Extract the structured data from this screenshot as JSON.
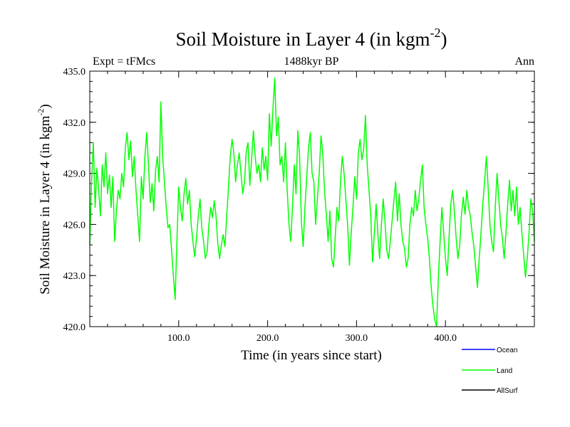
{
  "chart_data": {
    "type": "line",
    "title": "Soil Moisture in Layer 4 (in kgm",
    "title_sup": "-2",
    "title_end": ")",
    "subtitle": "1488kyr BP",
    "left_label": "Expt = tFMcs",
    "right_label": "Ann",
    "xlabel": "Time (in years since start)",
    "ylabel": "Soil Moisture in Layer 4 (in kgm",
    "ylabel_sup": "-2",
    "ylabel_end": ")",
    "xlim": [
      0,
      500
    ],
    "ylim": [
      420,
      435
    ],
    "xticks": [
      100,
      200,
      300,
      400
    ],
    "xtick_labels": [
      "100.0",
      "200.0",
      "300.0",
      "400.0"
    ],
    "yticks": [
      420,
      423,
      426,
      429,
      432,
      435
    ],
    "ytick_labels": [
      "420.0",
      "423.0",
      "426.0",
      "429.0",
      "432.0",
      "435.0"
    ],
    "legend": [
      {
        "name": "Ocean",
        "color": "#0000ff"
      },
      {
        "name": "Land",
        "color": "#00ff00"
      },
      {
        "name": "AllSurf",
        "color": "#000000"
      }
    ],
    "series": [
      {
        "name": "Land",
        "color": "#00ff00",
        "x": [
          0,
          2,
          4,
          6,
          8,
          10,
          12,
          14,
          16,
          18,
          20,
          22,
          24,
          26,
          28,
          30,
          32,
          34,
          36,
          38,
          40,
          42,
          44,
          46,
          48,
          50,
          52,
          54,
          56,
          58,
          60,
          62,
          64,
          66,
          68,
          70,
          72,
          74,
          76,
          78,
          80,
          82,
          84,
          86,
          88,
          90,
          92,
          94,
          96,
          98,
          100,
          102,
          104,
          106,
          108,
          110,
          112,
          114,
          116,
          118,
          120,
          122,
          124,
          126,
          128,
          130,
          132,
          134,
          136,
          138,
          140,
          142,
          144,
          146,
          148,
          150,
          152,
          154,
          156,
          158,
          160,
          162,
          164,
          166,
          168,
          170,
          172,
          174,
          176,
          178,
          180,
          182,
          184,
          186,
          188,
          190,
          192,
          194,
          196,
          198,
          200,
          202,
          204,
          206,
          208,
          210,
          212,
          214,
          216,
          218,
          220,
          222,
          224,
          226,
          228,
          230,
          232,
          234,
          236,
          238,
          240,
          242,
          244,
          246,
          248,
          250,
          252,
          254,
          256,
          258,
          260,
          262,
          264,
          266,
          268,
          270,
          272,
          274,
          276,
          278,
          280,
          282,
          284,
          286,
          288,
          290,
          292,
          294,
          296,
          298,
          300,
          302,
          304,
          306,
          308,
          310,
          312,
          314,
          316,
          318,
          320,
          322,
          324,
          326,
          328,
          330,
          332,
          334,
          336,
          338,
          340,
          342,
          344,
          346,
          348,
          350,
          352,
          354,
          356,
          358,
          360,
          362,
          364,
          366,
          368,
          370,
          372,
          374,
          376,
          378,
          380,
          382,
          384,
          386,
          388,
          390,
          392,
          394,
          396,
          398,
          400,
          402,
          404,
          406,
          408,
          410,
          412,
          414,
          416,
          418,
          420,
          422,
          424,
          426,
          428,
          430,
          432,
          434,
          436,
          438,
          440,
          442,
          444,
          446,
          448,
          450,
          452,
          454,
          456,
          458,
          460,
          462,
          464,
          466,
          468,
          470,
          472,
          474,
          476,
          478,
          480,
          482,
          484,
          486,
          488,
          490,
          492,
          494,
          496,
          498,
          500
        ],
        "y": [
          424.8,
          428.5,
          430.8,
          427.0,
          429.3,
          428.0,
          426.5,
          429.5,
          428.2,
          430.2,
          427.8,
          428.9,
          427.0,
          428.8,
          425.0,
          426.8,
          428.0,
          427.5,
          429.0,
          428.2,
          430.5,
          431.4,
          429.8,
          430.9,
          428.8,
          430.0,
          428.0,
          426.5,
          425.0,
          428.8,
          427.5,
          430.0,
          431.4,
          429.5,
          427.3,
          428.4,
          426.8,
          429.2,
          430.0,
          428.5,
          433.2,
          430.0,
          428.5,
          427.0,
          425.8,
          426.0,
          424.5,
          423.0,
          421.6,
          425.0,
          428.2,
          427.0,
          426.2,
          427.8,
          428.7,
          427.2,
          428.0,
          426.0,
          425.0,
          424.1,
          425.2,
          426.5,
          427.5,
          425.8,
          425.0,
          424.0,
          424.4,
          426.0,
          427.0,
          426.4,
          427.4,
          426.5,
          424.9,
          424.0,
          424.8,
          425.4,
          424.7,
          426.5,
          428.2,
          430.0,
          431.0,
          430.2,
          428.5,
          429.5,
          430.2,
          429.0,
          427.8,
          428.5,
          430.3,
          430.8,
          428.3,
          429.8,
          431.5,
          430.0,
          429.0,
          429.5,
          428.5,
          430.5,
          429.2,
          430.0,
          428.6,
          432.5,
          430.6,
          432.8,
          434.6,
          431.2,
          432.3,
          429.5,
          430.0,
          428.5,
          430.8,
          428.0,
          426.0,
          425.0,
          427.0,
          429.5,
          427.8,
          431.5,
          430.0,
          426.2,
          424.7,
          427.0,
          428.8,
          430.5,
          431.4,
          429.0,
          428.5,
          426.0,
          427.5,
          429.0,
          431.2,
          430.2,
          428.0,
          426.6,
          425.0,
          426.8,
          424.0,
          423.5,
          425.2,
          427.0,
          426.2,
          428.5,
          430.0,
          429.0,
          427.5,
          426.0,
          423.6,
          425.5,
          427.0,
          428.8,
          427.5,
          430.2,
          431.0,
          429.8,
          430.4,
          432.4,
          429.5,
          428.0,
          426.5,
          423.8,
          425.5,
          427.2,
          425.4,
          424.0,
          426.0,
          427.5,
          426.2,
          424.5,
          424.0,
          425.0,
          426.2,
          427.4,
          428.5,
          426.2,
          427.8,
          426.0,
          425.0,
          424.6,
          423.5,
          424.0,
          426.0,
          427.0,
          426.5,
          428.0,
          426.8,
          427.5,
          428.6,
          429.5,
          427.0,
          426.0,
          425.2,
          424.0,
          422.3,
          421.2,
          420.4,
          420.0,
          422.8,
          425.0,
          427.0,
          425.5,
          424.0,
          423.0,
          425.2,
          427.2,
          428.0,
          426.8,
          425.2,
          424.0,
          424.8,
          426.6,
          427.6,
          426.6,
          428.0,
          427.0,
          426.5,
          425.5,
          424.7,
          423.5,
          422.3,
          424.0,
          425.5,
          427.2,
          428.5,
          430.0,
          428.2,
          426.0,
          425.0,
          424.4,
          427.0,
          429.0,
          427.5,
          426.0,
          425.2,
          424.0,
          425.5,
          427.2,
          428.6,
          426.8,
          428.0,
          426.5,
          428.2,
          426.0,
          427.0,
          425.5,
          424.2,
          422.9,
          424.0,
          425.5,
          427.5,
          426.8,
          425.0
        ]
      }
    ]
  }
}
